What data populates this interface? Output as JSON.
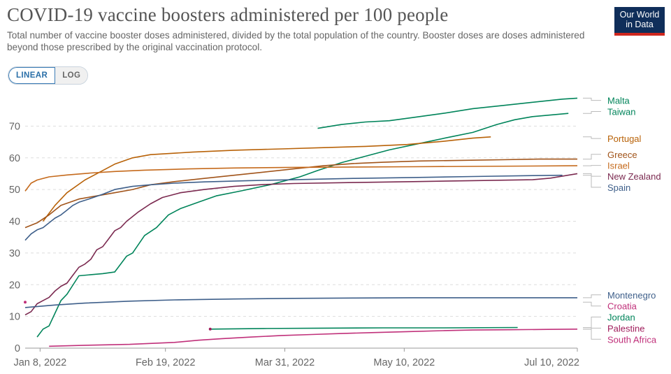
{
  "header": {
    "title": "COVID-19 vaccine boosters administered per 100 people",
    "subtitle": "Total number of vaccine booster doses administered, divided by the total population of the country. Booster doses are doses administered beyond those prescribed by the original vaccination protocol.",
    "logo_line1": "Our World",
    "logo_line2": "in Data"
  },
  "controls": {
    "linear_label": "LINEAR",
    "log_label": "LOG"
  },
  "chart_data": {
    "type": "line",
    "title": "COVID-19 vaccine boosters administered per 100 people",
    "xlabel": "",
    "ylabel": "",
    "xlim": [
      0,
      185
    ],
    "x_unit": "days since Jan 3, 2022",
    "ylim": [
      0,
      80
    ],
    "y_ticks": [
      0,
      10,
      20,
      30,
      40,
      50,
      60,
      70
    ],
    "x_ticks": [
      {
        "x": 5,
        "label": "Jan 8, 2022"
      },
      {
        "x": 47,
        "label": "Feb 19, 2022"
      },
      {
        "x": 87,
        "label": "Mar 31, 2022"
      },
      {
        "x": 127,
        "label": "May 10, 2022"
      },
      {
        "x": 188,
        "label": "Jul 10, 2022"
      }
    ],
    "grid": "horizontal dashed",
    "legend": "right (line-end labels)",
    "series": [
      {
        "name": "Malta",
        "color": "#00845a",
        "points": [
          [
            98,
            69.3
          ],
          [
            106,
            70.5
          ],
          [
            114,
            71.3
          ],
          [
            122,
            71.7
          ],
          [
            130,
            72.7
          ],
          [
            140,
            74.0
          ],
          [
            150,
            75.5
          ],
          [
            160,
            76.5
          ],
          [
            170,
            77.5
          ],
          [
            180,
            78.5
          ],
          [
            185,
            78.8
          ]
        ]
      },
      {
        "name": "Taiwan",
        "color": "#00845a",
        "points": [
          [
            4,
            3.5
          ],
          [
            6,
            6
          ],
          [
            8,
            7
          ],
          [
            12,
            15
          ],
          [
            14,
            17
          ],
          [
            18,
            22.8
          ],
          [
            26,
            23.5
          ],
          [
            30,
            24
          ],
          [
            34,
            29
          ],
          [
            36,
            30
          ],
          [
            40,
            35.5
          ],
          [
            44,
            38
          ],
          [
            48,
            42
          ],
          [
            52,
            44
          ],
          [
            58,
            46
          ],
          [
            64,
            48
          ],
          [
            72,
            49.5
          ],
          [
            82,
            51.5
          ],
          [
            92,
            54
          ],
          [
            98,
            56
          ],
          [
            106,
            58.5
          ],
          [
            114,
            60.5
          ],
          [
            122,
            62.5
          ],
          [
            132,
            64.5
          ],
          [
            142,
            66.5
          ],
          [
            150,
            68
          ],
          [
            158,
            70.5
          ],
          [
            164,
            72
          ],
          [
            170,
            73
          ],
          [
            182,
            74
          ]
        ]
      },
      {
        "name": "Portugal",
        "color": "#b86208",
        "points": [
          [
            6,
            40
          ],
          [
            10,
            45
          ],
          [
            14,
            49
          ],
          [
            20,
            53
          ],
          [
            26,
            56
          ],
          [
            30,
            58
          ],
          [
            36,
            60
          ],
          [
            42,
            61
          ],
          [
            56,
            61.8
          ],
          [
            70,
            62.4
          ],
          [
            86,
            62.8
          ],
          [
            100,
            63.2
          ],
          [
            114,
            63.6
          ],
          [
            128,
            64.2
          ],
          [
            140,
            65.2
          ],
          [
            150,
            66.2
          ],
          [
            156,
            66.6
          ]
        ]
      },
      {
        "name": "Greece",
        "color": "#a1541a",
        "points": [
          [
            0,
            38
          ],
          [
            4,
            39.5
          ],
          [
            8,
            42
          ],
          [
            12,
            45
          ],
          [
            18,
            47
          ],
          [
            24,
            48
          ],
          [
            30,
            49
          ],
          [
            36,
            50
          ],
          [
            42,
            51.5
          ],
          [
            50,
            52.5
          ],
          [
            60,
            53.5
          ],
          [
            70,
            54.5
          ],
          [
            80,
            55.5
          ],
          [
            90,
            56.5
          ],
          [
            100,
            57.5
          ],
          [
            110,
            58.2
          ],
          [
            120,
            58.6
          ],
          [
            132,
            59
          ],
          [
            146,
            59.2
          ],
          [
            160,
            59.4
          ],
          [
            172,
            59.6
          ],
          [
            185,
            59.6
          ]
        ]
      },
      {
        "name": "Israel",
        "color": "#c56a1c",
        "points": [
          [
            0,
            49.5
          ],
          [
            2,
            52
          ],
          [
            4,
            53
          ],
          [
            8,
            54
          ],
          [
            14,
            54.6
          ],
          [
            22,
            55.2
          ],
          [
            30,
            55.7
          ],
          [
            40,
            56.1
          ],
          [
            55,
            56.5
          ],
          [
            70,
            56.8
          ],
          [
            90,
            57
          ],
          [
            110,
            57.1
          ],
          [
            130,
            57.2
          ],
          [
            150,
            57.3
          ],
          [
            170,
            57.4
          ],
          [
            185,
            57.5
          ]
        ]
      },
      {
        "name": "New Zealand",
        "color": "#7b2a50",
        "points": [
          [
            0,
            10.5
          ],
          [
            2,
            11.5
          ],
          [
            4,
            14
          ],
          [
            6,
            15
          ],
          [
            8,
            16
          ],
          [
            10,
            18
          ],
          [
            12,
            19.5
          ],
          [
            14,
            20.5
          ],
          [
            16,
            23
          ],
          [
            18,
            25.5
          ],
          [
            20,
            26.5
          ],
          [
            22,
            28
          ],
          [
            24,
            31
          ],
          [
            26,
            32
          ],
          [
            28,
            34.5
          ],
          [
            30,
            37
          ],
          [
            32,
            38
          ],
          [
            34,
            40
          ],
          [
            36,
            41.5
          ],
          [
            38,
            43
          ],
          [
            42,
            45.5
          ],
          [
            46,
            47.5
          ],
          [
            52,
            49
          ],
          [
            60,
            50
          ],
          [
            70,
            51
          ],
          [
            80,
            51.6
          ],
          [
            90,
            51.9
          ],
          [
            110,
            52.2
          ],
          [
            130,
            52.5
          ],
          [
            150,
            52.8
          ],
          [
            170,
            53.1
          ],
          [
            176,
            53.6
          ],
          [
            185,
            55
          ]
        ]
      },
      {
        "name": "Spain",
        "color": "#3e5f8a",
        "points": [
          [
            0,
            34
          ],
          [
            2,
            36
          ],
          [
            4,
            37.3
          ],
          [
            6,
            38
          ],
          [
            8,
            39.5
          ],
          [
            10,
            41
          ],
          [
            12,
            42
          ],
          [
            14,
            43.5
          ],
          [
            16,
            45
          ],
          [
            18,
            46
          ],
          [
            22,
            47.2
          ],
          [
            26,
            48.5
          ],
          [
            30,
            50
          ],
          [
            36,
            51
          ],
          [
            42,
            51.5
          ],
          [
            50,
            52
          ],
          [
            60,
            52.4
          ],
          [
            75,
            52.8
          ],
          [
            90,
            53.1
          ],
          [
            110,
            53.5
          ],
          [
            130,
            53.8
          ],
          [
            150,
            54.1
          ],
          [
            170,
            54.4
          ],
          [
            180,
            54.5
          ]
        ]
      },
      {
        "name": "Montenegro",
        "color": "#3e5f8a",
        "points": [
          [
            0,
            12.8
          ],
          [
            10,
            13.6
          ],
          [
            20,
            14.2
          ],
          [
            35,
            14.8
          ],
          [
            50,
            15.2
          ],
          [
            70,
            15.5
          ],
          [
            90,
            15.7
          ],
          [
            110,
            15.8
          ],
          [
            130,
            15.9
          ],
          [
            150,
            15.9
          ],
          [
            185,
            15.9
          ]
        ]
      },
      {
        "name": "Croatia",
        "color": "#c0307a",
        "points": [
          [
            0,
            14.5
          ],
          [
            0.3,
            14.5
          ]
        ]
      },
      {
        "name": "Jordan",
        "color": "#00845a",
        "points": [
          [
            62,
            6
          ],
          [
            80,
            6.2
          ],
          [
            100,
            6.3
          ],
          [
            120,
            6.4
          ],
          [
            140,
            6.4
          ],
          [
            165,
            6.5
          ]
        ]
      },
      {
        "name": "Palestine",
        "color": "#a01e5c",
        "points": [
          [
            62,
            6
          ],
          [
            62.3,
            6
          ]
        ]
      },
      {
        "name": "South Africa",
        "color": "#c0307a",
        "points": [
          [
            8,
            0.6
          ],
          [
            20,
            0.9
          ],
          [
            35,
            1.2
          ],
          [
            50,
            1.8
          ],
          [
            58,
            2.5
          ],
          [
            66,
            3
          ],
          [
            76,
            3.5
          ],
          [
            86,
            4
          ],
          [
            96,
            4.3
          ],
          [
            106,
            4.6
          ],
          [
            116,
            4.9
          ],
          [
            128,
            5.2
          ],
          [
            140,
            5.5
          ],
          [
            150,
            5.7
          ],
          [
            162,
            5.8
          ],
          [
            175,
            5.9
          ],
          [
            185,
            6
          ]
        ]
      }
    ],
    "labels": [
      {
        "series": "Malta",
        "label_y": 78.1,
        "text": "Malta",
        "color": "#00845a"
      },
      {
        "series": "Taiwan",
        "label_y": 74.6,
        "text": "Taiwan",
        "color": "#00845a"
      },
      {
        "series": "Portugal",
        "label_y": 66.1,
        "text": "Portugal",
        "color": "#b86208"
      },
      {
        "series": "Greece",
        "label_y": 61.1,
        "text": "Greece",
        "color": "#a1541a"
      },
      {
        "series": "Israel",
        "label_y": 57.6,
        "text": "Israel",
        "color": "#c56a1c"
      },
      {
        "series": "New Zealand",
        "label_y": 54.2,
        "text": "New Zealand",
        "color": "#7b2a50"
      },
      {
        "series": "Spain",
        "label_y": 50.7,
        "text": "Spain",
        "color": "#3e5f8a"
      },
      {
        "series": "Montenegro",
        "label_y": 16.8,
        "text": "Montenegro",
        "color": "#3e5f8a"
      },
      {
        "series": "Croatia",
        "label_y": 13.3,
        "text": "Croatia",
        "color": "#c0307a"
      },
      {
        "series": "Jordan",
        "label_y": 9.8,
        "text": "Jordan",
        "color": "#00845a"
      },
      {
        "series": "Palestine",
        "label_y": 6.3,
        "text": "Palestine",
        "color": "#a01e5c"
      },
      {
        "series": "South Africa",
        "label_y": 2.8,
        "text": "South Africa",
        "color": "#c0307a"
      }
    ]
  }
}
